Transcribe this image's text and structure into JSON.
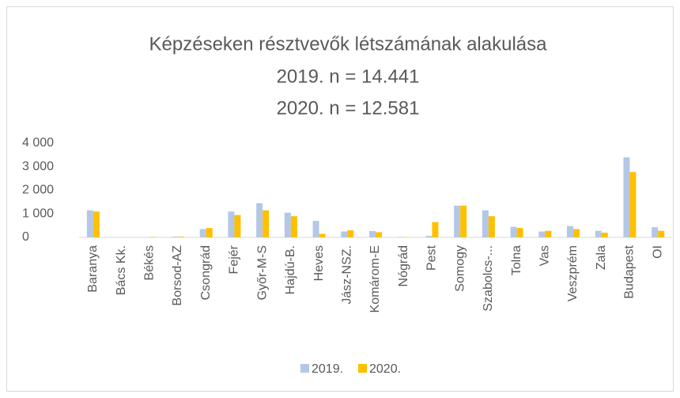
{
  "chart_data": {
    "type": "bar",
    "title": "Képzéseken résztvevők létszámának alakulása",
    "subtitle": [
      "2019. n = 14.441",
      "2020. n = 12.581"
    ],
    "categories": [
      "Baranya",
      "Bács Kk.",
      "Békés",
      "Borsod-AZ",
      "Csongrád",
      "Fejér",
      "Győr-M-S",
      "Hajdú-B.",
      "Heves",
      "Jász-NSZ.",
      "Komárom-E",
      "Nógrád",
      "Pest",
      "Somogy",
      "Szabolcs-...",
      "Tolna",
      "Vas",
      "Veszprém",
      "Zala",
      "Budapest",
      "OI"
    ],
    "series": [
      {
        "name": "2019.",
        "color": "#b4c7e7",
        "values": [
          1150,
          0,
          10,
          30,
          350,
          1100,
          1450,
          1050,
          700,
          250,
          270,
          20,
          60,
          1350,
          1150,
          450,
          250,
          480,
          280,
          3400,
          430
        ]
      },
      {
        "name": "2020.",
        "color": "#ffc000",
        "values": [
          1100,
          0,
          20,
          30,
          400,
          950,
          1150,
          900,
          150,
          300,
          220,
          10,
          650,
          1350,
          900,
          400,
          280,
          350,
          200,
          2780,
          280
        ]
      }
    ],
    "ylim": [
      0,
      4000
    ],
    "yticks": [
      0,
      {
        "value": 1000,
        "label": "1 000"
      },
      {
        "value": 2000,
        "label": "2 000"
      },
      {
        "value": 3000,
        "label": "3 000"
      },
      {
        "value": 4000,
        "label": "4 000"
      }
    ],
    "grid": false,
    "legend": "bottom"
  }
}
